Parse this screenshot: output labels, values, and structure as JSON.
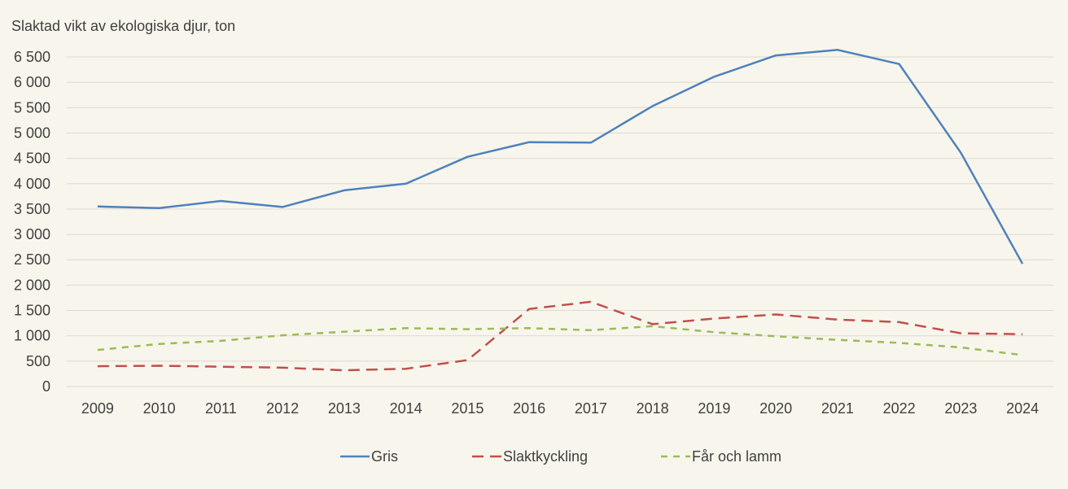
{
  "chart_data": {
    "type": "line",
    "title": "Slaktad vikt av ekologiska djur, ton",
    "xlabel": "",
    "ylabel": "",
    "categories": [
      "2009",
      "2010",
      "2011",
      "2012",
      "2013",
      "2014",
      "2015",
      "2016",
      "2017",
      "2018",
      "2019",
      "2020",
      "2021",
      "2022",
      "2023",
      "2024"
    ],
    "ylim": [
      0,
      6500
    ],
    "y_ticks": [
      0,
      500,
      1000,
      1500,
      2000,
      2500,
      3000,
      3500,
      4000,
      4500,
      5000,
      5500,
      6000,
      6500
    ],
    "y_tick_labels": [
      "0",
      "500",
      "1 000",
      "1 500",
      "2 000",
      "2 500",
      "3 000",
      "3 500",
      "4 000",
      "4 500",
      "5 000",
      "5 500",
      "6 000",
      "6 500"
    ],
    "grid": true,
    "legend_position": "bottom",
    "series": [
      {
        "name": "Gris",
        "color": "#4f81bd",
        "style": "solid",
        "values": [
          3550,
          3520,
          3660,
          3540,
          3870,
          4000,
          4530,
          4820,
          4810,
          5530,
          6110,
          6530,
          6640,
          6360,
          4610,
          2420
        ]
      },
      {
        "name": "Slaktkyckling",
        "color": "#c0504d",
        "style": "dash",
        "values": [
          400,
          410,
          390,
          370,
          320,
          350,
          520,
          1530,
          1670,
          1230,
          1340,
          1420,
          1320,
          1270,
          1050,
          1030
        ]
      },
      {
        "name": "Får och lamm",
        "color": "#9bbb59",
        "style": "dot-dash-short",
        "values": [
          720,
          840,
          900,
          1010,
          1080,
          1150,
          1130,
          1150,
          1110,
          1190,
          1070,
          990,
          920,
          860,
          770,
          620
        ]
      }
    ]
  }
}
